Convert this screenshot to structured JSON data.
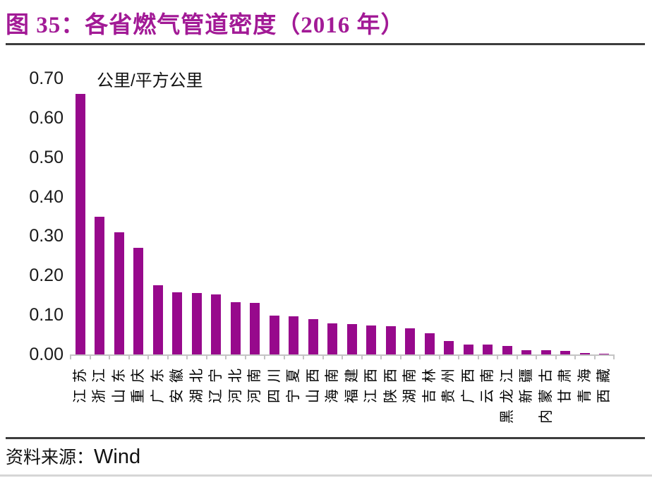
{
  "figure": {
    "title": "图 35：各省燃气管道密度（2016 年）",
    "source_label": "资料来源：",
    "source_value": "Wind"
  },
  "colors": {
    "bar": "#97098C",
    "title": "#A21A96",
    "axis": "#C4C4C4",
    "text": "#1A1A1A"
  },
  "chart_data": {
    "type": "bar",
    "title": "图 35：各省燃气管道密度（2016 年）",
    "unit_label": "公里/平方公里",
    "ylabel": "公里/平方公里",
    "xlabel": "",
    "categories": [
      "江苏",
      "浙江",
      "山东",
      "重庆",
      "广东",
      "安徽",
      "湖北",
      "辽宁",
      "河北",
      "河南",
      "四川",
      "宁夏",
      "山西",
      "海南",
      "福建",
      "江西",
      "陕西",
      "湖南",
      "吉林",
      "贵州",
      "广西",
      "云南",
      "黑龙江",
      "新疆",
      "内蒙古",
      "甘肃",
      "青海",
      "西藏"
    ],
    "values": [
      0.66,
      0.35,
      0.31,
      0.27,
      0.175,
      0.157,
      0.155,
      0.152,
      0.133,
      0.13,
      0.098,
      0.097,
      0.089,
      0.079,
      0.077,
      0.073,
      0.071,
      0.066,
      0.053,
      0.034,
      0.025,
      0.025,
      0.021,
      0.011,
      0.011,
      0.009,
      0.004,
      0.001
    ],
    "ylim": [
      0.0,
      0.7
    ],
    "ytick_labels": [
      "0.00",
      "0.10",
      "0.20",
      "0.30",
      "0.40",
      "0.50",
      "0.60",
      "0.70"
    ],
    "grid": false,
    "legend_position": "none",
    "source": "Wind"
  }
}
